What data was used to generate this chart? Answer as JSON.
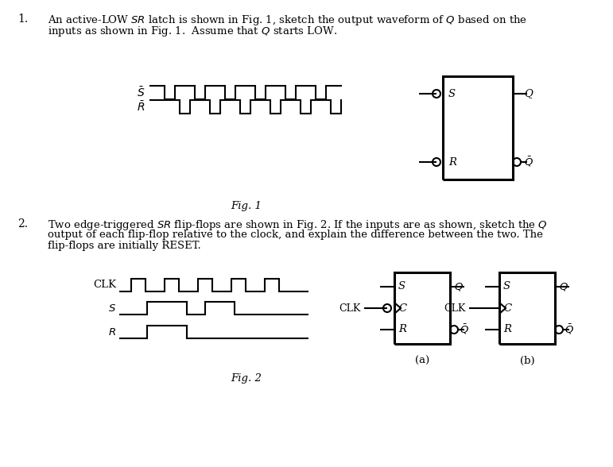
{
  "bg_color": "#ffffff",
  "line_color": "#000000",
  "fig1_caption": "Fig. 1",
  "fig2_caption": "Fig. 2",
  "label_a": "(a)",
  "label_b": "(b)"
}
